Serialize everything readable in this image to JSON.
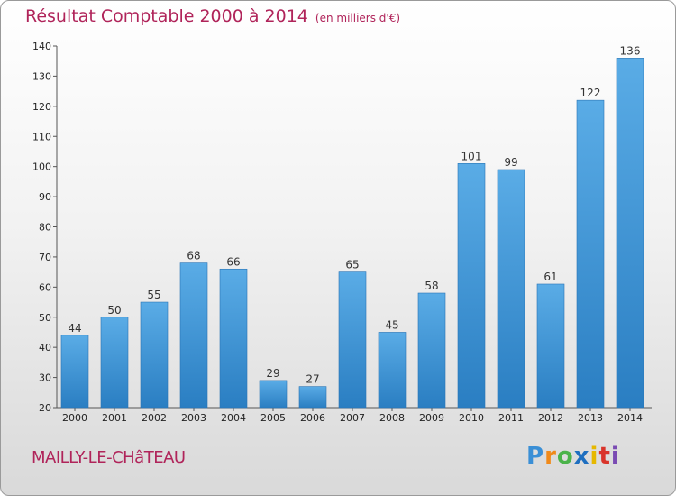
{
  "title": "Résultat Comptable 2000 à 2014",
  "subtitle": "(en milliers d'€)",
  "commune": "MAILLY-LE-CHâTEAU",
  "logo": {
    "p": "P",
    "r": "r",
    "o": "o",
    "x": "x",
    "i1": "i",
    "t": "t",
    "i2": "i"
  },
  "colors": {
    "bar_top": "#5aace6",
    "bar_bottom": "#2a7ec2",
    "accent": "#b0245a"
  },
  "chart_data": {
    "type": "bar",
    "title": "Résultat Comptable 2000 à 2014",
    "subtitle": "(en milliers d'€)",
    "xlabel": "",
    "ylabel": "",
    "categories": [
      "2000",
      "2001",
      "2002",
      "2003",
      "2004",
      "2005",
      "2006",
      "2007",
      "2008",
      "2009",
      "2010",
      "2011",
      "2012",
      "2013",
      "2014"
    ],
    "values": [
      44,
      50,
      55,
      68,
      66,
      29,
      27,
      65,
      45,
      58,
      101,
      99,
      61,
      122,
      136
    ],
    "ylim": [
      20,
      140
    ],
    "yticks": [
      20,
      30,
      40,
      50,
      60,
      70,
      80,
      90,
      100,
      110,
      120,
      130,
      140
    ],
    "grid": false
  }
}
